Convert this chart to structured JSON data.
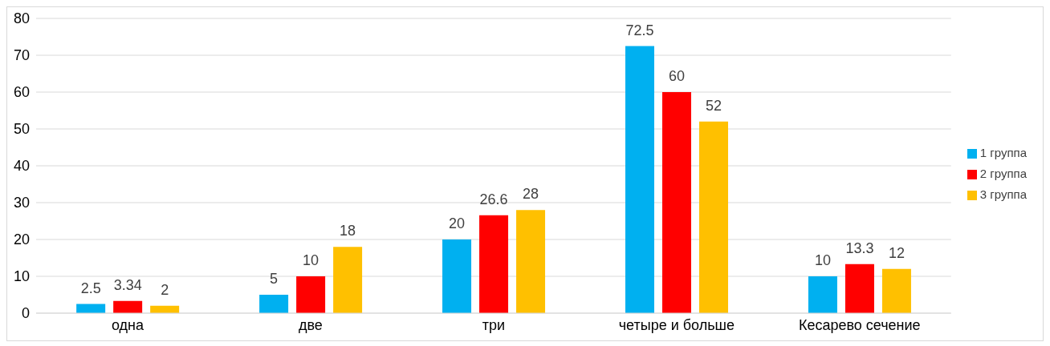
{
  "chart_data": {
    "type": "bar",
    "categories": [
      "одна",
      "две",
      "три",
      "четыре и больше",
      "Кесарево сечение"
    ],
    "series": [
      {
        "name": "1 группа",
        "color": "#00b0f0",
        "values": [
          2.5,
          5,
          20,
          72.5,
          10
        ]
      },
      {
        "name": "2 группа",
        "color": "#ff0000",
        "values": [
          3.34,
          10,
          26.6,
          60,
          13.3
        ]
      },
      {
        "name": "3 группа",
        "color": "#ffc000",
        "values": [
          2,
          18,
          28,
          52,
          12
        ]
      }
    ],
    "ylim": [
      0,
      80
    ],
    "yticks": [
      0,
      10,
      20,
      30,
      40,
      50,
      60,
      70,
      80
    ],
    "grid": "y",
    "legend": "right",
    "data_labels": true
  }
}
